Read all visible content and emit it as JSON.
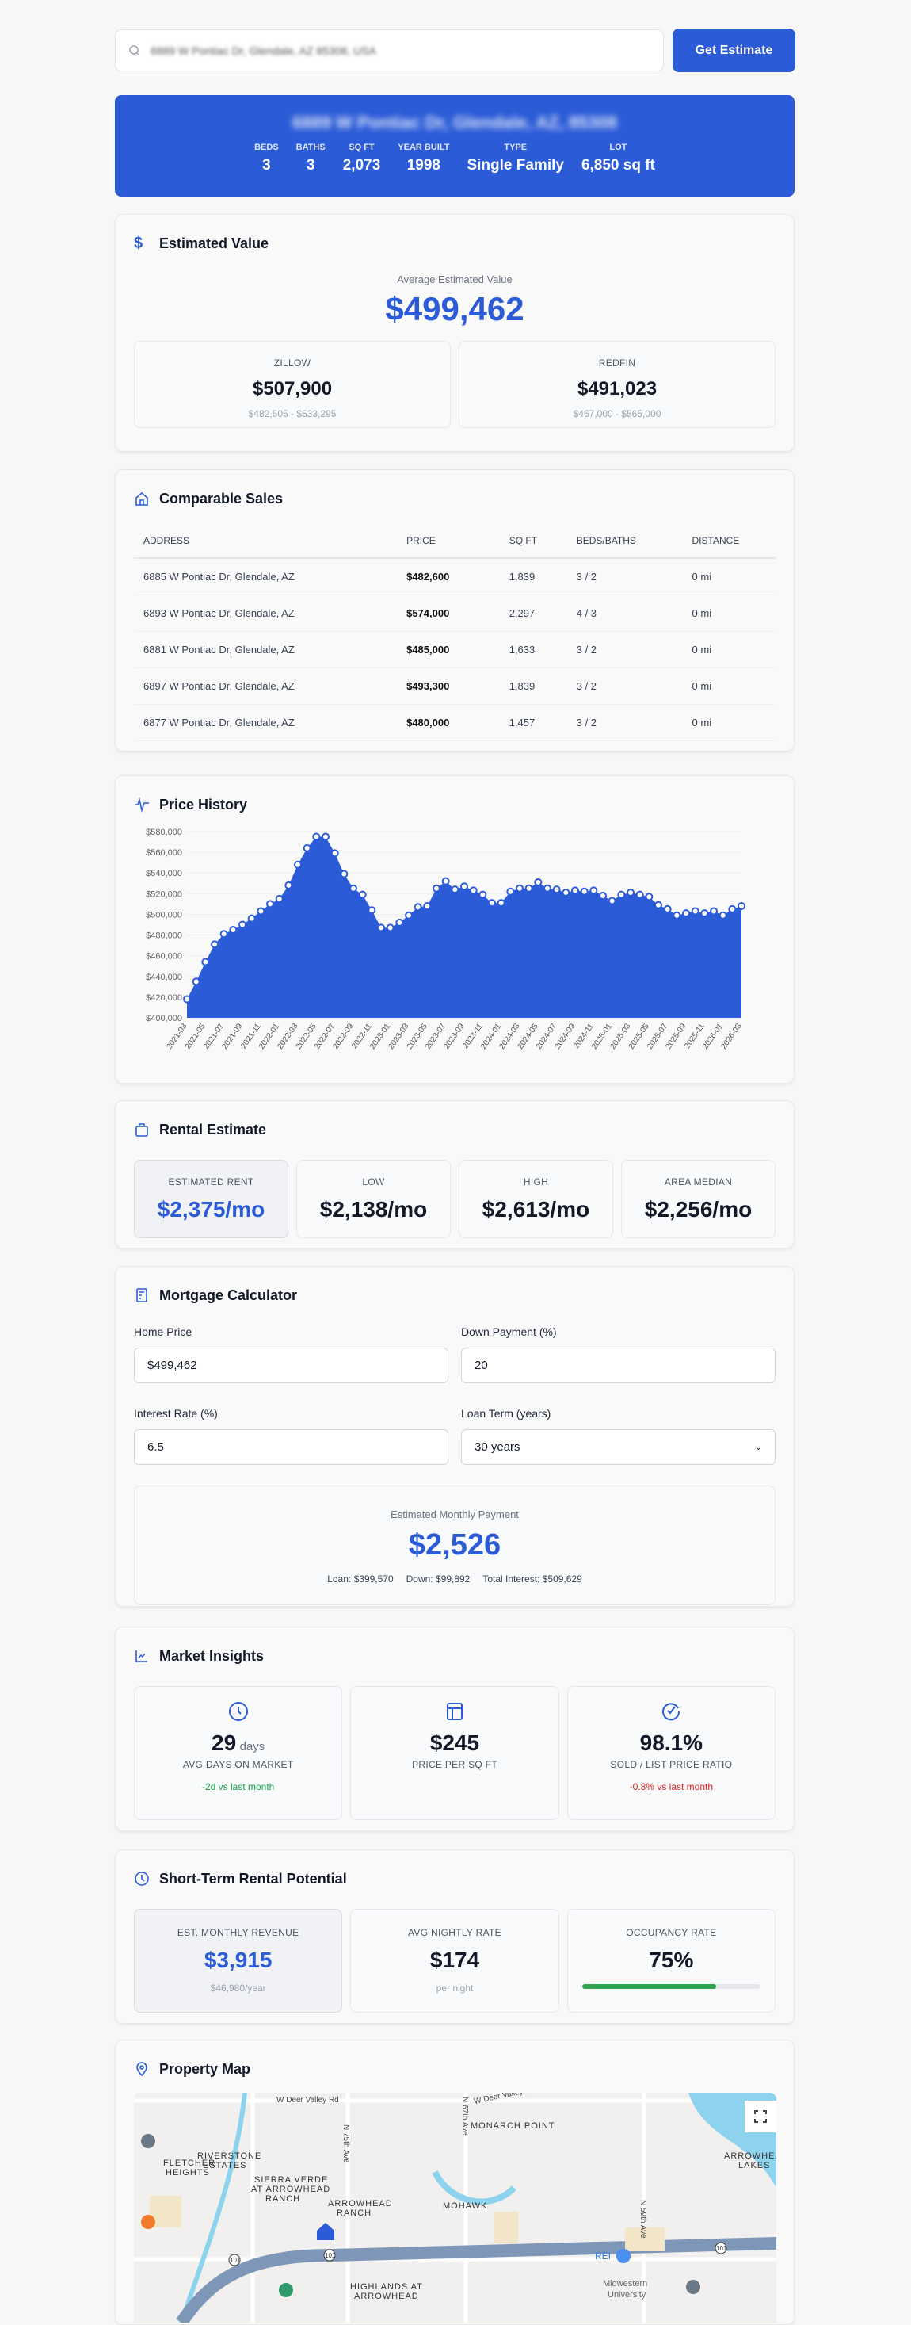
{
  "search": {
    "value": "6889 W Pontiac Dr, Glendale, AZ 85308, USA",
    "button": "Get Estimate"
  },
  "property": {
    "address": "6889 W Pontiac Dr, Glendale, AZ, 85308",
    "stats": [
      {
        "label": "BEDS",
        "value": "3"
      },
      {
        "label": "BATHS",
        "value": "3"
      },
      {
        "label": "SQ FT",
        "value": "2,073"
      },
      {
        "label": "YEAR BUILT",
        "value": "1998"
      },
      {
        "label": "TYPE",
        "value": "Single Family"
      },
      {
        "label": "LOT",
        "value": "6,850 sq ft"
      }
    ]
  },
  "estimated": {
    "title": "Estimated Value",
    "avg_label": "Average Estimated Value",
    "avg": "$499,462",
    "sources": [
      {
        "name": "ZILLOW",
        "value": "$507,900",
        "range": "$482,505 - $533,295"
      },
      {
        "name": "REDFIN",
        "value": "$491,023",
        "range": "$467,000 - $565,000"
      }
    ]
  },
  "comps": {
    "title": "Comparable Sales",
    "headers": [
      "ADDRESS",
      "PRICE",
      "SQ FT",
      "BEDS/BATHS",
      "DISTANCE"
    ],
    "rows": [
      [
        "6885 W Pontiac Dr, Glendale, AZ",
        "$482,600",
        "1,839",
        "3 / 2",
        "0 mi"
      ],
      [
        "6893 W Pontiac Dr, Glendale, AZ",
        "$574,000",
        "2,297",
        "4 / 3",
        "0 mi"
      ],
      [
        "6881 W Pontiac Dr, Glendale, AZ",
        "$485,000",
        "1,633",
        "3 / 2",
        "0 mi"
      ],
      [
        "6897 W Pontiac Dr, Glendale, AZ",
        "$493,300",
        "1,839",
        "3 / 2",
        "0 mi"
      ],
      [
        "6877 W Pontiac Dr, Glendale, AZ",
        "$480,000",
        "1,457",
        "3 / 2",
        "0 mi"
      ]
    ]
  },
  "price_history": {
    "title": "Price History"
  },
  "chart_data": {
    "type": "area",
    "color": "#2b5bd7",
    "ylim": [
      400000,
      580000
    ],
    "grid": true,
    "yticks": [
      "$400,000",
      "$420,000",
      "$440,000",
      "$460,000",
      "$480,000",
      "$500,000",
      "$520,000",
      "$540,000",
      "$560,000",
      "$580,000"
    ],
    "x": [
      "2021-03",
      "2021-04",
      "2021-05",
      "2021-06",
      "2021-07",
      "2021-08",
      "2021-09",
      "2021-10",
      "2021-11",
      "2021-12",
      "2022-01",
      "2022-02",
      "2022-03",
      "2022-04",
      "2022-05",
      "2022-06",
      "2022-07",
      "2022-08",
      "2022-09",
      "2022-10",
      "2022-11",
      "2022-12",
      "2023-01",
      "2023-02",
      "2023-03",
      "2023-04",
      "2023-05",
      "2023-06",
      "2023-07",
      "2023-08",
      "2023-09",
      "2023-10",
      "2023-11",
      "2023-12",
      "2024-01",
      "2024-02",
      "2024-03",
      "2024-04",
      "2024-05",
      "2024-06",
      "2024-07",
      "2024-08",
      "2024-09",
      "2024-10",
      "2024-11",
      "2024-12",
      "2025-01",
      "2025-02",
      "2025-03",
      "2025-04",
      "2025-05",
      "2025-06",
      "2025-07",
      "2025-08",
      "2025-09",
      "2025-10",
      "2025-11",
      "2025-12",
      "2026-01",
      "2026-02",
      "2026-03"
    ],
    "values": [
      418000,
      435000,
      454000,
      471000,
      481000,
      485000,
      490000,
      496000,
      503000,
      510000,
      515000,
      528000,
      548000,
      564000,
      575000,
      575000,
      559000,
      539000,
      525000,
      519000,
      504000,
      487000,
      487000,
      492000,
      499000,
      507000,
      508000,
      525000,
      532000,
      524000,
      527000,
      523000,
      519000,
      511000,
      511000,
      522000,
      525000,
      525000,
      531000,
      525000,
      524000,
      521000,
      523000,
      522000,
      523000,
      518000,
      513000,
      519000,
      521000,
      519000,
      517000,
      509000,
      505000,
      499000,
      501000,
      503000,
      501000,
      503000,
      499000,
      505000,
      508000
    ]
  },
  "rental": {
    "title": "Rental Estimate",
    "items": [
      {
        "label": "ESTIMATED RENT",
        "value": "$2,375/mo"
      },
      {
        "label": "LOW",
        "value": "$2,138/mo"
      },
      {
        "label": "HIGH",
        "value": "$2,613/mo"
      },
      {
        "label": "AREA MEDIAN",
        "value": "$2,256/mo"
      }
    ]
  },
  "mortgage": {
    "title": "Mortgage Calculator",
    "home_price_label": "Home Price",
    "home_price": "$499,462",
    "down_label": "Down Payment (%)",
    "down": "20",
    "rate_label": "Interest Rate (%)",
    "rate": "6.5",
    "term_label": "Loan Term (years)",
    "term": "30 years",
    "result_label": "Estimated Monthly Payment",
    "payment": "$2,526",
    "loan": "Loan: $399,570",
    "downpay": "Down: $99,892",
    "interest": "Total Interest: $509,629"
  },
  "market": {
    "title": "Market Insights",
    "items": [
      {
        "icon": "clock-icon",
        "value": "29",
        "unit": "days",
        "label": "AVG DAYS ON MARKET",
        "change": "-2d vs last month",
        "trend": "good"
      },
      {
        "icon": "layout-icon",
        "value": "$245",
        "unit": "",
        "label": "PRICE PER SQ FT",
        "change": "",
        "trend": ""
      },
      {
        "icon": "check-circle-icon",
        "value": "98.1%",
        "unit": "",
        "label": "SOLD / LIST PRICE RATIO",
        "change": "-0.8% vs last month",
        "trend": "bad"
      }
    ]
  },
  "str": {
    "title": "Short-Term Rental Potential",
    "revenue_label": "EST. MONTHLY REVENUE",
    "revenue": "$3,915",
    "revenue_year": "$46,980/year",
    "nightly_label": "AVG NIGHTLY RATE",
    "nightly": "$174",
    "nightly_sub": "per night",
    "occ_label": "OCCUPANCY RATE",
    "occ": "75%",
    "occ_pct": 75,
    "occ_color": "#2ea44f"
  },
  "map": {
    "title": "Property Map",
    "labels": [
      "W Deer Valley Rd",
      "W Deer Valley Rd",
      "N 75th Ave",
      "N 67th Ave",
      "N 59th Ave",
      "MONARCH POINT",
      "RIVERSTONE",
      "ESTATES",
      "FLETCHER",
      "HEIGHTS",
      "SIERRA VERDE",
      "AT ARROWHEAD",
      "RANCH",
      "ARROWHEAD",
      "RANCH",
      "MOHAWK",
      "ARROWHEAD",
      "LAKES",
      "HIGHLANDS AT",
      "ARROWHEAD",
      "REI",
      "Midwestern",
      "University",
      "101",
      "101",
      "101"
    ]
  }
}
